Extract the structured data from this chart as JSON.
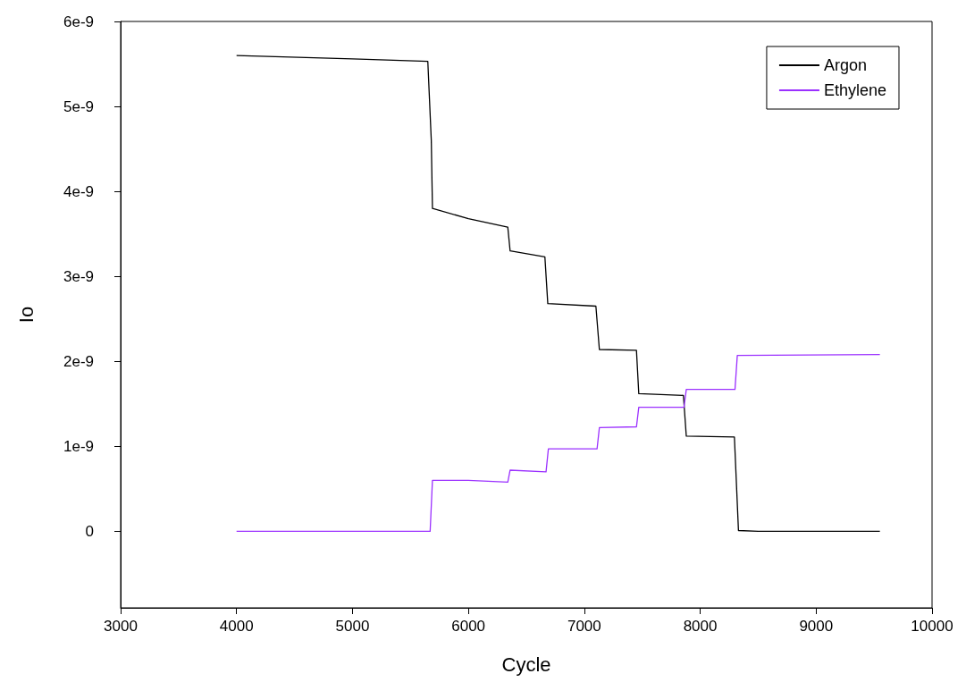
{
  "chart_data": {
    "type": "line",
    "xlabel": "Cycle",
    "ylabel": "Io",
    "xlim": [
      3000,
      10000
    ],
    "xticks": [
      3000,
      4000,
      5000,
      6000,
      7000,
      8000,
      9000,
      10000
    ],
    "ylim": [
      -9e-10,
      6e-09
    ],
    "yticks": [
      0,
      {
        "value": 1e-09,
        "label": "1e-9"
      },
      {
        "value": 2e-09,
        "label": "2e-9"
      },
      {
        "value": 3e-09,
        "label": "3e-9"
      },
      {
        "value": 4e-09,
        "label": "4e-9"
      },
      {
        "value": 5e-09,
        "label": "5e-9"
      },
      {
        "value": 6e-09,
        "label": "6e-9"
      }
    ],
    "series": [
      {
        "name": "Argon",
        "color": "#000000",
        "x": [
          4000,
          5000,
          5650,
          5680,
          5690,
          6000,
          6340,
          6360,
          6660,
          6685,
          7100,
          7130,
          7450,
          7470,
          7855,
          7880,
          8295,
          8330,
          8500,
          9550
        ],
        "values": [
          5.6e-09,
          5.56e-09,
          5.53e-09,
          4.6e-09,
          3.8e-09,
          3.68e-09,
          3.58e-09,
          3.3e-09,
          3.23e-09,
          2.68e-09,
          2.65e-09,
          2.14e-09,
          2.13e-09,
          1.62e-09,
          1.6e-09,
          1.12e-09,
          1.11e-09,
          1e-11,
          0,
          0
        ]
      },
      {
        "name": "Ethylene",
        "color": "#9b30ff",
        "x": [
          4000,
          5670,
          5690,
          6000,
          6340,
          6360,
          6670,
          6690,
          7110,
          7130,
          7450,
          7470,
          7860,
          7880,
          8300,
          8320,
          9550
        ],
        "values": [
          0,
          0,
          6e-10,
          6e-10,
          5.8e-10,
          7.2e-10,
          7e-10,
          9.7e-10,
          9.7e-10,
          1.22e-09,
          1.23e-09,
          1.46e-09,
          1.46e-09,
          1.67e-09,
          1.67e-09,
          2.07e-09,
          2.08e-09
        ]
      }
    ],
    "legend": "top right",
    "grid": false,
    "marker": "none",
    "line_style": "solid"
  }
}
